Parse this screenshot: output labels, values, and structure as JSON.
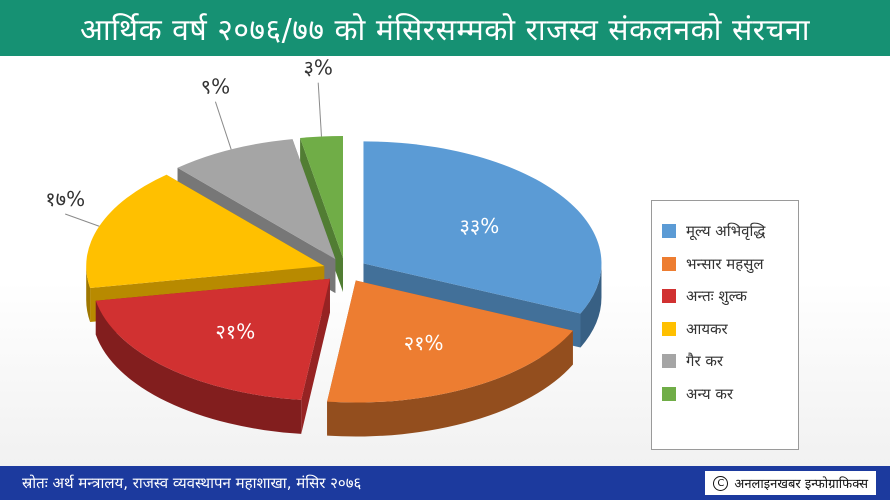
{
  "header": {
    "title": "आर्थिक वर्ष २०७६/७७ को मंसिरसम्मको राजस्व संकलनको संरचना"
  },
  "chart_data": {
    "type": "pie",
    "title": "आर्थिक वर्ष २०७६/७७ को मंसिरसम्मको राजस्व संकलनको संरचना",
    "categories": [
      "मूल्य अभिवृद्धि",
      "भन्सार महसुल",
      "अन्तः शुल्क",
      "आयकर",
      "गैर कर",
      "अन्य कर"
    ],
    "values": [
      33,
      21,
      21,
      17,
      9,
      3
    ],
    "labels": [
      "३३%",
      "२१%",
      "२१%",
      "१७%",
      "९%",
      "३%"
    ],
    "colors": [
      "#5b9bd5",
      "#ed7d31",
      "#d13131",
      "#ffc000",
      "#a5a5a5",
      "#70ad47"
    ],
    "exploded": true,
    "legend_position": "right"
  },
  "footer": {
    "source": "स्रोतः अर्थ मन्त्रालय, राजस्व व्यवस्थापन महाशाखा, मंसिर २०७६",
    "credit": "अनलाइनखबर इन्फोग्राफिक्स",
    "credit_icon": "copyright-icon"
  }
}
